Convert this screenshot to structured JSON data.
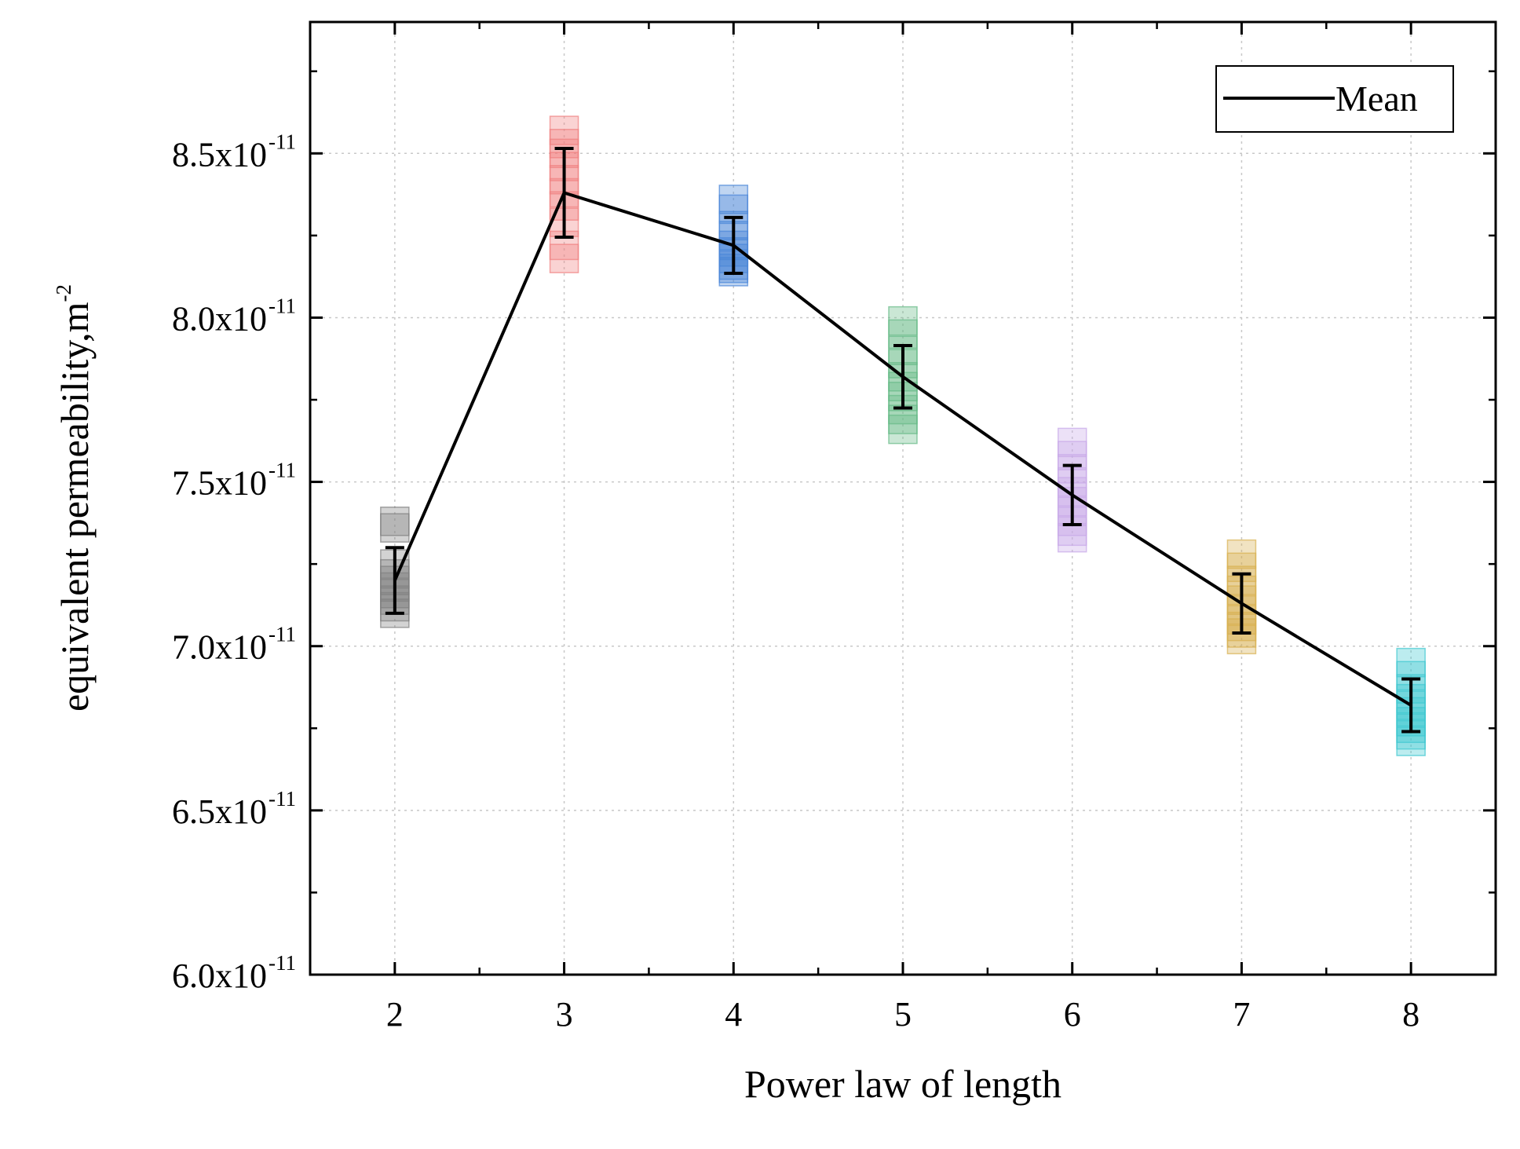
{
  "chart_data": {
    "type": "line",
    "title": "",
    "xlabel": "Power law of length",
    "ylabel": "equivalent permeability,m",
    "ylabel_superscript": "-2",
    "xlim": [
      1.5,
      8.5
    ],
    "ylim": [
      6e-11,
      8.9e-11
    ],
    "x_ticks": [
      2,
      3,
      4,
      5,
      6,
      7,
      8
    ],
    "y_ticks": [
      {
        "value": 6e-11,
        "mantissa": "6.0x10",
        "exponent": "-11"
      },
      {
        "value": 6.5e-11,
        "mantissa": "6.5x10",
        "exponent": "-11"
      },
      {
        "value": 7e-11,
        "mantissa": "7.0x10",
        "exponent": "-11"
      },
      {
        "value": 7.5e-11,
        "mantissa": "7.5x10",
        "exponent": "-11"
      },
      {
        "value": 8e-11,
        "mantissa": "8.0x10",
        "exponent": "-11"
      },
      {
        "value": 8.5e-11,
        "mantissa": "8.5x10",
        "exponent": "-11"
      }
    ],
    "grid": true,
    "legend": {
      "position": "top-right",
      "entries": [
        "Mean"
      ]
    },
    "series": [
      {
        "name": "Mean",
        "color": "#000000",
        "x": [
          2,
          3,
          4,
          5,
          6,
          7,
          8
        ],
        "values": [
          7.2e-11,
          8.38e-11,
          8.22e-11,
          7.82e-11,
          7.46e-11,
          7.13e-11,
          6.82e-11
        ],
        "error": [
          1e-12,
          1.35e-12,
          8.5e-13,
          9.5e-13,
          9e-13,
          9e-13,
          8e-13
        ]
      }
    ],
    "sample_groups": [
      {
        "x": 2,
        "color": "#808080",
        "values": [
          7.38e-11,
          7.36e-11,
          7.25e-11,
          7.22e-11,
          7.2e-11,
          7.18e-11,
          7.16e-11,
          7.14e-11,
          7.12e-11,
          7.1e-11
        ]
      },
      {
        "x": 3,
        "color": "#f08080",
        "values": [
          8.57e-11,
          8.53e-11,
          8.5e-11,
          8.46e-11,
          8.42e-11,
          8.38e-11,
          8.34e-11,
          8.29e-11,
          8.22e-11,
          8.18e-11
        ]
      },
      {
        "x": 4,
        "color": "#4a86d8",
        "values": [
          8.36e-11,
          8.33e-11,
          8.28e-11,
          8.25e-11,
          8.22e-11,
          8.2e-11,
          8.18e-11,
          8.16e-11,
          8.15e-11,
          8.14e-11
        ]
      },
      {
        "x": 5,
        "color": "#66bb88",
        "values": [
          7.99e-11,
          7.95e-11,
          7.9e-11,
          7.86e-11,
          7.82e-11,
          7.79e-11,
          7.76e-11,
          7.72e-11,
          7.69e-11,
          7.66e-11
        ]
      },
      {
        "x": 6,
        "color": "#c8a8e8",
        "values": [
          7.62e-11,
          7.58e-11,
          7.54e-11,
          7.5e-11,
          7.47e-11,
          7.44e-11,
          7.41e-11,
          7.38e-11,
          7.35e-11,
          7.33e-11
        ]
      },
      {
        "x": 7,
        "color": "#d8b050",
        "values": [
          7.28e-11,
          7.24e-11,
          7.2e-11,
          7.17e-11,
          7.14e-11,
          7.11e-11,
          7.08e-11,
          7.06e-11,
          7.04e-11,
          7.02e-11
        ]
      },
      {
        "x": 8,
        "color": "#40c8d0",
        "values": [
          6.95e-11,
          6.91e-11,
          6.87e-11,
          6.84e-11,
          6.82e-11,
          6.8e-11,
          6.77e-11,
          6.75e-11,
          6.73e-11,
          6.71e-11
        ]
      }
    ]
  }
}
